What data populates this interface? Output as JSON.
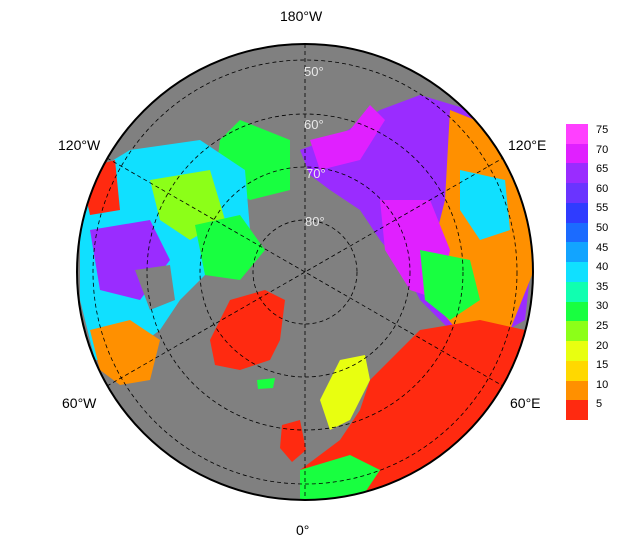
{
  "map": {
    "projection": "north-polar-stereographic",
    "longitude_labels": {
      "top": "180°W",
      "upper_left": "120°W",
      "upper_right": "120°E",
      "lower_left": "60°W",
      "lower_right": "60°E",
      "bottom": "0°"
    },
    "latitude_labels": [
      "50°",
      "60°",
      "70°",
      "80°"
    ],
    "ocean_color": "#808080",
    "grid_style": "dashed"
  },
  "colorbar": {
    "ticks": [
      "75",
      "70",
      "65",
      "60",
      "55",
      "50",
      "45",
      "40",
      "35",
      "30",
      "25",
      "20",
      "15",
      "10",
      "5"
    ],
    "min": 0,
    "max": 77,
    "colors_top_to_bottom": [
      "#ff40ff",
      "#e020ff",
      "#9a2cff",
      "#6a34ff",
      "#2f3cff",
      "#1b6bff",
      "#12a4ff",
      "#10e0ff",
      "#10ffb0",
      "#18ff40",
      "#8cff18",
      "#e8ff10",
      "#ffd800",
      "#ff9000",
      "#ff2a10"
    ]
  }
}
